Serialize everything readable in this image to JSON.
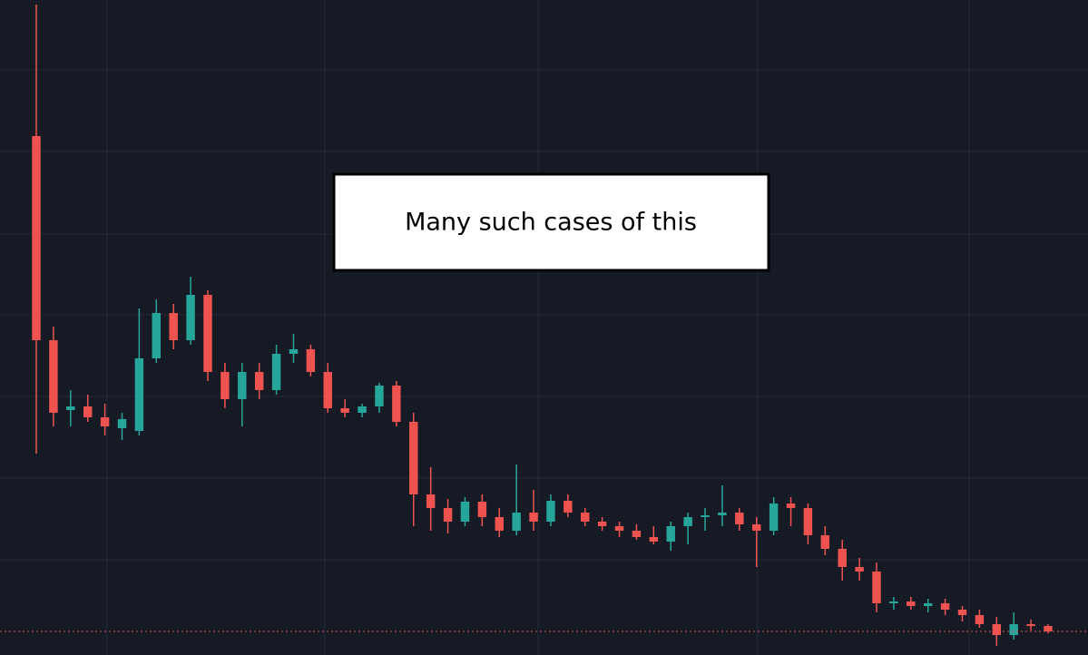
{
  "chart_data": {
    "type": "candlestick",
    "annotation": "Many such cases of this",
    "up_color": "#26a69a",
    "down_color": "#ef5350",
    "open": [
      572,
      347,
      270,
      274,
      262,
      250,
      247,
      327,
      377,
      347,
      397,
      312,
      282,
      312,
      292,
      332,
      337,
      312,
      272,
      267,
      274,
      297,
      257,
      177,
      162,
      147,
      169,
      152,
      137,
      157,
      147,
      170,
      157,
      147,
      142,
      137,
      130,
      125,
      142,
      152,
      154,
      157,
      144,
      137,
      167,
      162,
      132,
      117,
      97,
      92,
      57,
      59,
      54,
      57,
      50,
      44,
      34,
      22,
      34,
      32
    ],
    "high": [
      717,
      362,
      292,
      287,
      277,
      267,
      382,
      392,
      387,
      417,
      402,
      322,
      322,
      322,
      342,
      354,
      342,
      322,
      282,
      277,
      300,
      302,
      267,
      207,
      172,
      174,
      177,
      162,
      210,
      182,
      177,
      177,
      162,
      152,
      147,
      144,
      142,
      147,
      157,
      162,
      187,
      162,
      152,
      174,
      174,
      167,
      142,
      127,
      107,
      102,
      64,
      64,
      62,
      62,
      54,
      50,
      42,
      47,
      39,
      34
    ],
    "low": [
      222,
      252,
      252,
      257,
      242,
      237,
      242,
      322,
      337,
      342,
      302,
      272,
      252,
      282,
      287,
      322,
      307,
      267,
      262,
      262,
      267,
      252,
      142,
      137,
      134,
      142,
      142,
      130,
      132,
      137,
      142,
      152,
      142,
      137,
      130,
      127,
      122,
      115,
      122,
      137,
      142,
      137,
      97,
      132,
      142,
      122,
      110,
      82,
      82,
      47,
      50,
      50,
      47,
      44,
      37,
      30,
      10,
      17,
      27,
      24
    ],
    "close": [
      347,
      267,
      274,
      262,
      252,
      260,
      327,
      377,
      347,
      397,
      312,
      282,
      312,
      292,
      332,
      337,
      312,
      272,
      267,
      274,
      297,
      257,
      177,
      162,
      147,
      169,
      152,
      137,
      157,
      147,
      170,
      157,
      147,
      142,
      137,
      130,
      125,
      142,
      152,
      154,
      157,
      144,
      137,
      167,
      162,
      132,
      117,
      97,
      92,
      57,
      59,
      54,
      57,
      50,
      44,
      34,
      22,
      34,
      32,
      26
    ],
    "ylim": [
      0,
      722
    ],
    "price_line": 26,
    "price_line_color": "#ef5350",
    "grid": true
  }
}
